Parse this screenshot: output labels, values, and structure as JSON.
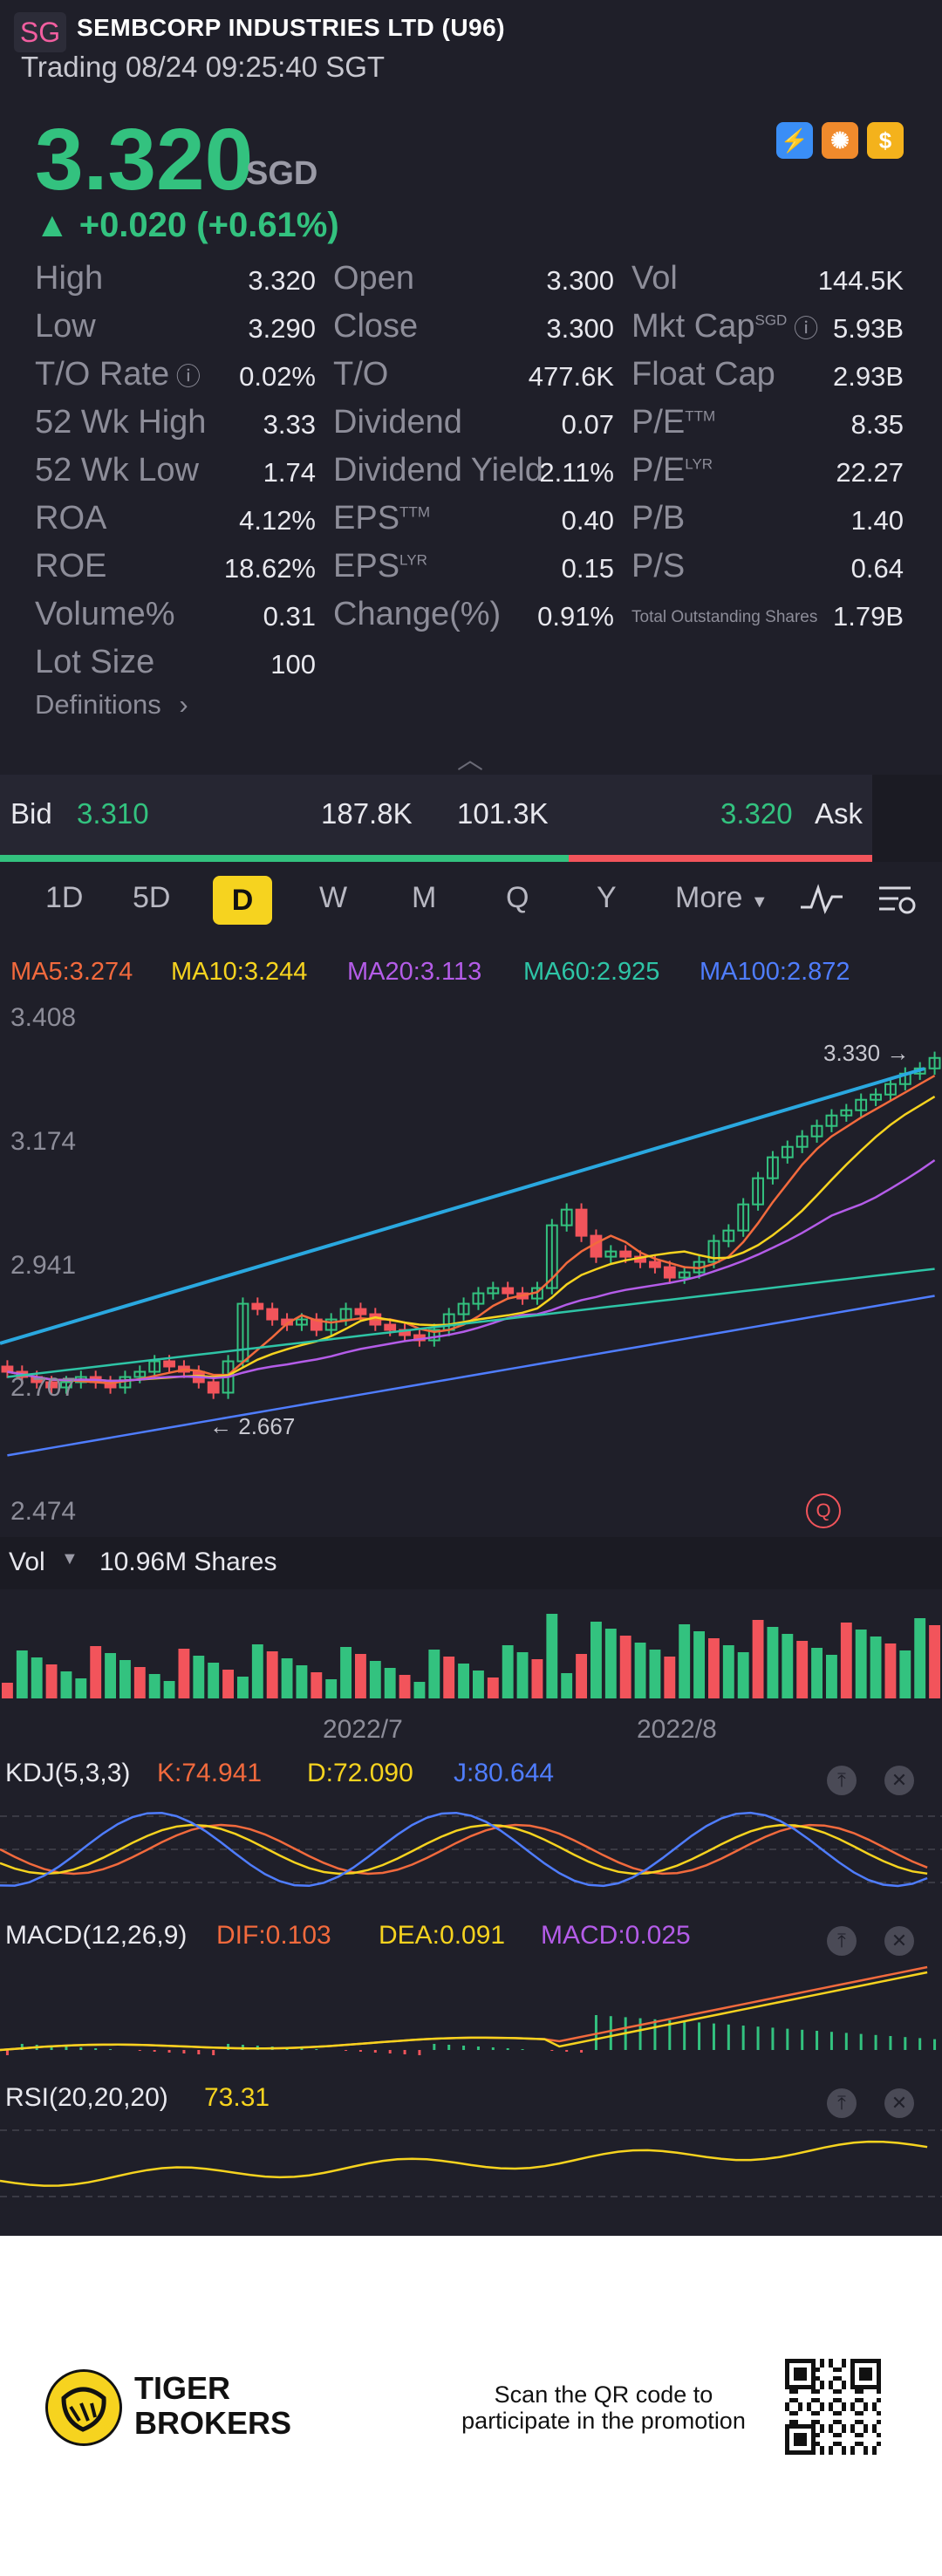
{
  "header": {
    "badge": "SG",
    "name": "SEMBCORP INDUSTRIES LTD (U96)",
    "status": "Trading 08/24 09:25:40 SGT"
  },
  "quote": {
    "price": "3.320",
    "currency": "SGD",
    "change": "▲ +0.020 (+0.61%)"
  },
  "promo_icons": [
    "lightning-icon",
    "hot-icon",
    "dollar-icon"
  ],
  "stats": [
    {
      "label": "High",
      "value": "3.320"
    },
    {
      "label": "Open",
      "value": "3.300"
    },
    {
      "label": "Vol",
      "value": "144.5K"
    },
    {
      "label": "Low",
      "value": "3.290"
    },
    {
      "label": "Close",
      "value": "3.300"
    },
    {
      "label": "Mkt Cap",
      "sup": "SGD",
      "value": "5.93B"
    },
    {
      "label": "T/O Rate",
      "value": "0.02%"
    },
    {
      "label": "T/O",
      "value": "477.6K"
    },
    {
      "label": "Float Cap",
      "value": "2.93B"
    },
    {
      "label": "52 Wk High",
      "value": "3.33"
    },
    {
      "label": "Dividend",
      "value": "0.07"
    },
    {
      "label": "P/E",
      "sup": "TTM",
      "value": "8.35"
    },
    {
      "label": "52 Wk Low",
      "value": "1.74"
    },
    {
      "label": "Dividend Yield",
      "value": "2.11%"
    },
    {
      "label": "P/E",
      "sup": "LYR",
      "value": "22.27"
    },
    {
      "label": "ROA",
      "value": "4.12%"
    },
    {
      "label": "EPS",
      "sup": "TTM",
      "value": "0.40"
    },
    {
      "label": "P/B",
      "value": "1.40"
    },
    {
      "label": "ROE",
      "value": "18.62%"
    },
    {
      "label": "EPS",
      "sup": "LYR",
      "value": "0.15"
    },
    {
      "label": "P/S",
      "value": "0.64"
    },
    {
      "label": "Volume%",
      "value": "0.31"
    },
    {
      "label": "Change(%)",
      "value": "0.91%"
    },
    {
      "label": "Total Outstanding Shares",
      "value": "1.79B"
    },
    {
      "label": "Lot Size",
      "value": "100"
    }
  ],
  "definitions_label": "Definitions",
  "bid_ask": {
    "bid_label": "Bid",
    "bid_price": "3.310",
    "bid_size": "187.8K",
    "ask_size": "101.3K",
    "ask_price": "3.320",
    "ask_label": "Ask",
    "bid_share": 0.652
  },
  "period_tabs": [
    "1D",
    "5D",
    "D",
    "W",
    "M",
    "Q",
    "Y",
    "More"
  ],
  "selected_tab": "D",
  "ma": [
    {
      "label": "MA5:3.274",
      "color": "#f26a3d"
    },
    {
      "label": "MA10:3.244",
      "color": "#f6d31f"
    },
    {
      "label": "MA20:3.113",
      "color": "#b45ce8"
    },
    {
      "label": "MA60:2.925",
      "color": "#2ec4a6"
    },
    {
      "label": "MA100:2.872",
      "color": "#4f7dff"
    }
  ],
  "price_axis": [
    "3.408",
    "3.174",
    "2.941",
    "2.707",
    "2.474"
  ],
  "annotations": {
    "high": "3.330",
    "low": "2.667"
  },
  "vol": {
    "label": "Vol",
    "value": "10.96M Shares"
  },
  "dates": [
    "2022/7",
    "2022/8"
  ],
  "kdj": {
    "label": "KDJ(5,3,3)",
    "k": "K:74.941",
    "d": "D:72.090",
    "j": "J:80.644"
  },
  "macd": {
    "label": "MACD(12,26,9)",
    "dif": "DIF:0.103",
    "dea": "DEA:0.091",
    "macd": "MACD:0.025"
  },
  "rsi": {
    "label": "RSI(20,20,20)",
    "value": "73.31"
  },
  "footer": {
    "brand_line1": "TIGER",
    "brand_line2": "BROKERS",
    "scan_line1": "Scan the QR code to",
    "scan_line2": "participate in the promotion"
  },
  "chart_data": {
    "type": "candlestick",
    "ylim": [
      2.474,
      3.408
    ],
    "closes": [
      2.72,
      2.71,
      2.7,
      2.69,
      2.7,
      2.71,
      2.7,
      2.69,
      2.71,
      2.72,
      2.74,
      2.73,
      2.72,
      2.7,
      2.68,
      2.74,
      2.85,
      2.84,
      2.82,
      2.81,
      2.82,
      2.8,
      2.82,
      2.84,
      2.83,
      2.81,
      2.8,
      2.79,
      2.78,
      2.8,
      2.83,
      2.85,
      2.87,
      2.88,
      2.87,
      2.86,
      2.88,
      3.0,
      3.03,
      2.98,
      2.94,
      2.95,
      2.94,
      2.93,
      2.92,
      2.9,
      2.91,
      2.93,
      2.97,
      2.99,
      3.04,
      3.09,
      3.13,
      3.15,
      3.17,
      3.19,
      3.21,
      3.22,
      3.24,
      3.25,
      3.27,
      3.29,
      3.3,
      3.32
    ]
  }
}
